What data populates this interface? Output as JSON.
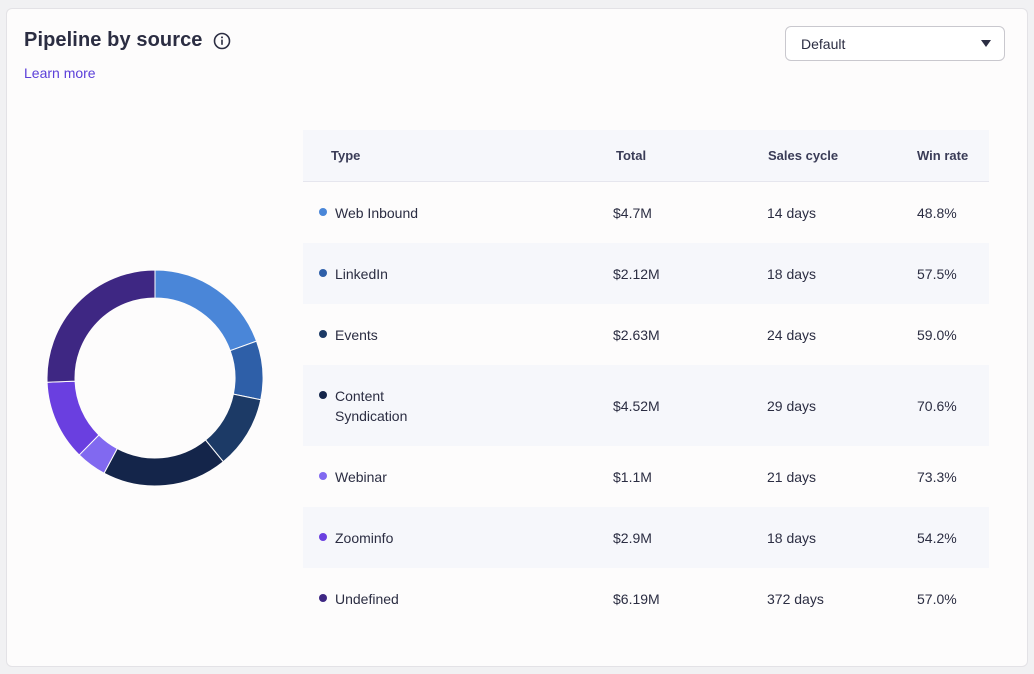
{
  "header": {
    "title": "Pipeline by source",
    "learn_more": "Learn more"
  },
  "filter": {
    "selected": "Default"
  },
  "table": {
    "headers": {
      "type": "Type",
      "total": "Total",
      "cycle": "Sales cycle",
      "win": "Win rate"
    },
    "rows": [
      {
        "type": "Web Inbound",
        "total": "$4.7M",
        "cycle": "14 days",
        "win": "48.8%",
        "color": "#4a86d8"
      },
      {
        "type": "LinkedIn",
        "total": "$2.12M",
        "cycle": "18 days",
        "win": "57.5%",
        "color": "#2e5fa8"
      },
      {
        "type": "Events",
        "total": "$2.63M",
        "cycle": "24 days",
        "win": "59.0%",
        "color": "#1c3a66"
      },
      {
        "type": "Content Syndication",
        "total": "$4.52M",
        "cycle": "29 days",
        "win": "70.6%",
        "color": "#14254a"
      },
      {
        "type": "Webinar",
        "total": "$1.1M",
        "cycle": "21 days",
        "win": "73.3%",
        "color": "#8169f0"
      },
      {
        "type": "Zoominfo",
        "total": "$2.9M",
        "cycle": "18 days",
        "win": "54.2%",
        "color": "#6a3fe0"
      },
      {
        "type": "Undefined",
        "total": "$6.19M",
        "cycle": "372 days",
        "win": "57.0%",
        "color": "#3e2783"
      }
    ]
  },
  "chart_data": {
    "type": "pie",
    "title": "Pipeline by source",
    "categories": [
      "Web Inbound",
      "LinkedIn",
      "Events",
      "Content Syndication",
      "Webinar",
      "Zoominfo",
      "Undefined"
    ],
    "values": [
      4.7,
      2.12,
      2.63,
      4.52,
      1.1,
      2.9,
      6.19
    ],
    "unit": "$M",
    "colors": [
      "#4a86d8",
      "#2e5fa8",
      "#1c3a66",
      "#14254a",
      "#8169f0",
      "#6a3fe0",
      "#3e2783"
    ],
    "legend": "table-right"
  }
}
